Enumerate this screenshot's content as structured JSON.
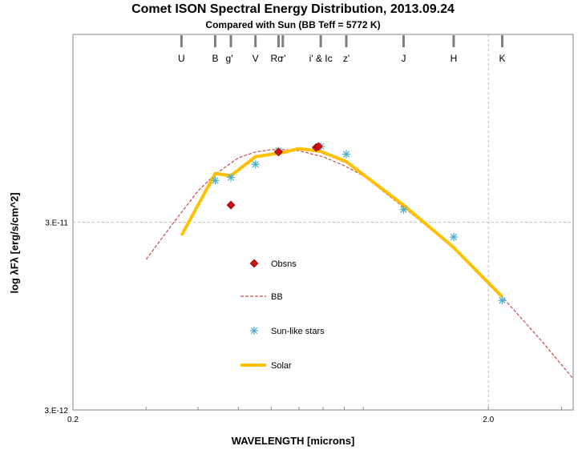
{
  "chart_data": {
    "type": "line",
    "title": "Comet ISON Spectral Energy Distribution, 2013.09.24",
    "subtitle": "Compared with Sun (BB Teff = 5772 K)",
    "xlabel": "WAVELENGTH [microns]",
    "ylabel": "log λFλ [erg/s/cm^2]",
    "x_scale": "log",
    "y_scale": "log",
    "xlim": [
      0.2,
      3.2
    ],
    "ylim": [
      3e-12,
      3e-10
    ],
    "x_ticks": [
      {
        "value": 0.2,
        "label": "0.2"
      },
      {
        "value": 2.0,
        "label": "2.0"
      }
    ],
    "y_ticks": [
      {
        "value": 3e-12,
        "label": "3.E-12"
      },
      {
        "value": 3e-11,
        "label": "3.E-11"
      }
    ],
    "grid": true,
    "legend_position": "center-left",
    "band_markers": [
      {
        "label": "U",
        "x": 0.365
      },
      {
        "label": "B",
        "x": 0.44
      },
      {
        "label": "g'",
        "x": 0.48
      },
      {
        "label": "V",
        "x": 0.55
      },
      {
        "label": "Rc",
        "x": 0.64
      },
      {
        "label": "r'",
        "x": 0.625
      },
      {
        "label": "i' & Ic",
        "x": 0.79
      },
      {
        "label": "z'",
        "x": 0.91
      },
      {
        "label": "J",
        "x": 1.25
      },
      {
        "label": "H",
        "x": 1.65
      },
      {
        "label": "K",
        "x": 2.16
      }
    ],
    "series": [
      {
        "name": "Obsns",
        "style": "marker",
        "color": "#cc1111",
        "x": [
          0.48,
          0.625,
          0.77,
          0.78
        ],
        "y": [
          3.7e-11,
          7.1e-11,
          7.5e-11,
          7.6e-11
        ]
      },
      {
        "name": "BB",
        "style": "dashed",
        "color": "#c0504d",
        "x": [
          0.3,
          0.35,
          0.4,
          0.44,
          0.5,
          0.55,
          0.6,
          0.65,
          0.7,
          0.8,
          0.9,
          1.0,
          1.25,
          1.65,
          2.16,
          2.7,
          3.2
        ],
        "y": [
          1.9e-11,
          3e-11,
          4.4e-11,
          5.4e-11,
          6.6e-11,
          7.1e-11,
          7.3e-11,
          7.3e-11,
          7.2e-11,
          6.7e-11,
          6e-11,
          5.3e-11,
          3.6e-11,
          2.2e-11,
          1.2e-11,
          6.9e-12,
          4.4e-12
        ]
      },
      {
        "name": "Sun-like stars",
        "style": "marker",
        "color": "#4bacc6",
        "x": [
          0.44,
          0.48,
          0.55,
          0.625,
          0.79,
          0.91,
          1.25,
          1.65,
          2.16
        ],
        "y": [
          5e-11,
          5.2e-11,
          6.1e-11,
          7.2e-11,
          7.6e-11,
          6.9e-11,
          3.5e-11,
          2.5e-11,
          1.15e-11
        ]
      },
      {
        "name": "Solar",
        "style": "line",
        "color": "#ffc000",
        "x": [
          0.365,
          0.44,
          0.48,
          0.55,
          0.64,
          0.7,
          0.79,
          0.91,
          1.25,
          1.65,
          2.16
        ],
        "y": [
          2.55e-11,
          5.45e-11,
          5.3e-11,
          6.7e-11,
          7.05e-11,
          7.4e-11,
          7.15e-11,
          6.3e-11,
          3.7e-11,
          2.2e-11,
          1.2e-11
        ]
      }
    ]
  }
}
